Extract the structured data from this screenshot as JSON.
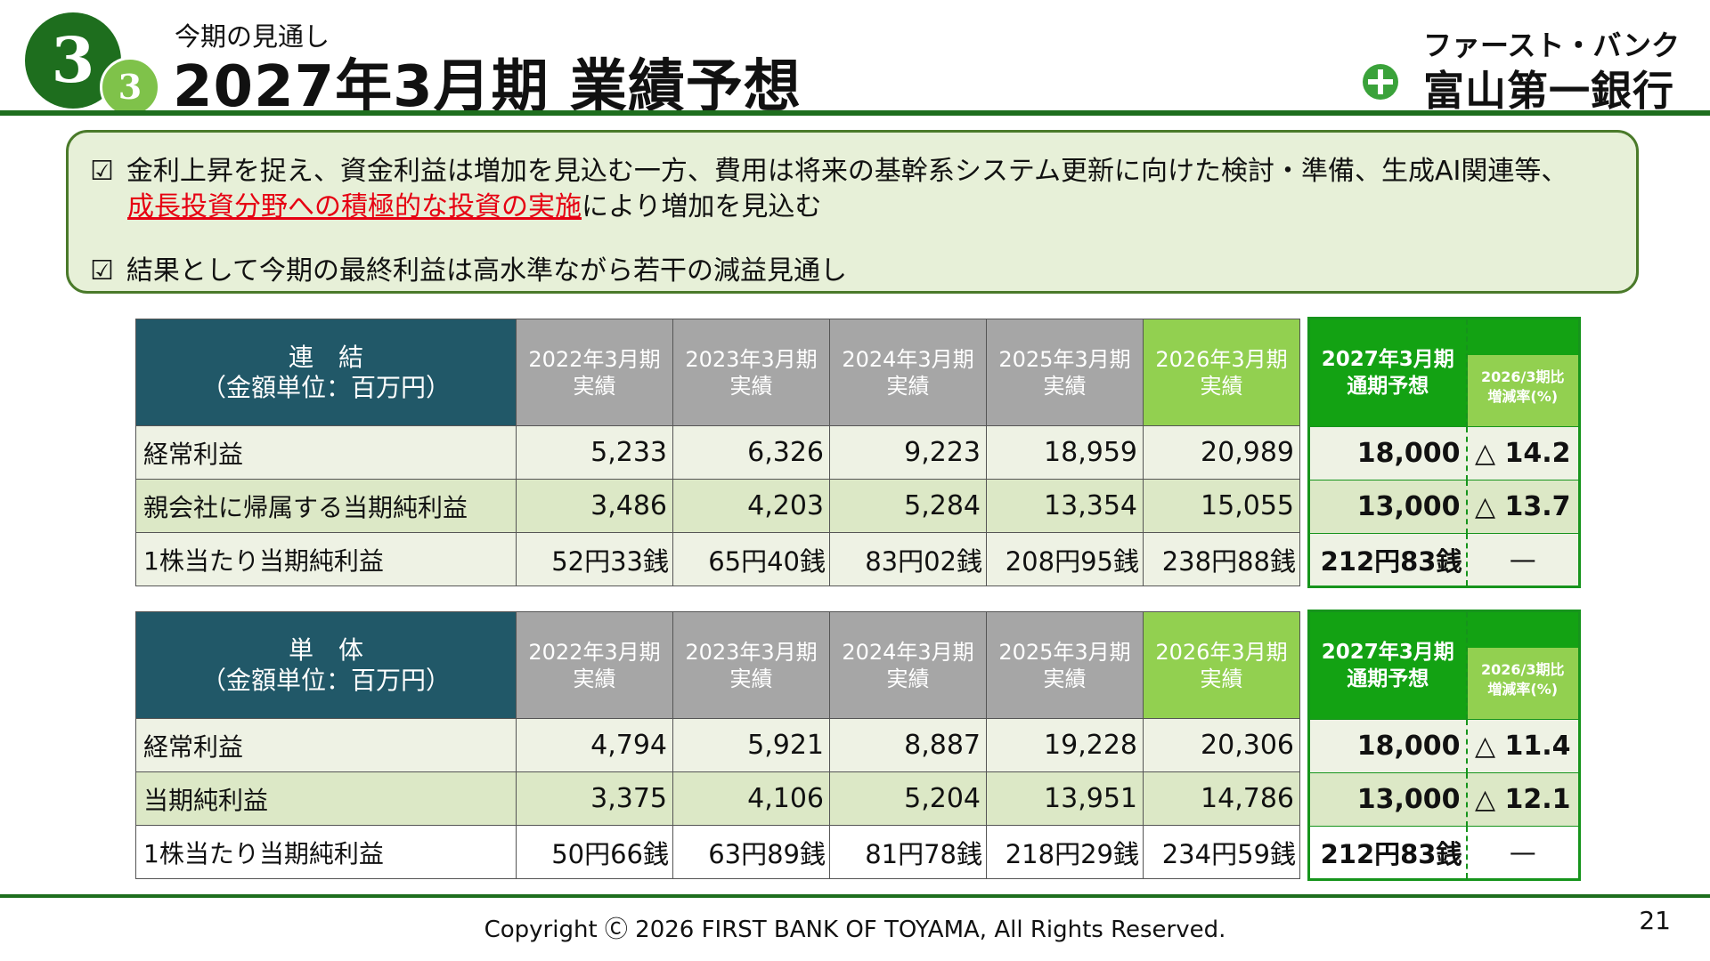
{
  "header": {
    "section_big": "3",
    "section_small": "3",
    "subtitle": "今期の見通し",
    "title": "2027年3月期 業績予想",
    "logo_kana": "ファースト・バンク",
    "logo_name": "富山第一銀行",
    "brand_color": "#1e6e1e"
  },
  "notes": {
    "checkbox": "☑",
    "line1": "金利上昇を捉え、資金利益は増加を見込む一方、費用は将来の基幹系システム更新に向けた検討・準備、生成AI関連等、",
    "line2_highlight": "成長投資分野への積極的な投資の実施",
    "line2_rest": "により増加を見込む",
    "line3": "結果として今期の最終利益は高水準ながら若干の減益見通し"
  },
  "tables": [
    {
      "label_line1": "連　結",
      "label_line2": "（金額単位：百万円）",
      "columns": [
        {
          "year": "2022年3月期",
          "kind": "実績"
        },
        {
          "year": "2023年3月期",
          "kind": "実績"
        },
        {
          "year": "2024年3月期",
          "kind": "実績"
        },
        {
          "year": "2025年3月期",
          "kind": "実績"
        },
        {
          "year": "2026年3月期",
          "kind": "実績"
        }
      ],
      "forecast_year": "2027年3月期",
      "forecast_kind": "通期予想",
      "rate_line1": "2026/3期比",
      "rate_line2": "増減率(%)",
      "rows": [
        {
          "label": "経常利益",
          "values": [
            "5,233",
            "6,326",
            "9,223",
            "18,959",
            "20,989"
          ],
          "forecast": "18,000",
          "rate": "△ 14.2"
        },
        {
          "label": "親会社に帰属する当期純利益",
          "values": [
            "3,486",
            "4,203",
            "5,284",
            "13,354",
            "15,055"
          ],
          "forecast": "13,000",
          "rate": "△ 13.7"
        },
        {
          "label": "1株当たり当期純利益",
          "values": [
            "52円33銭",
            "65円40銭",
            "83円02銭",
            "208円95銭",
            "238円88銭"
          ],
          "forecast": "212円83銭",
          "rate": "—"
        }
      ]
    },
    {
      "label_line1": "単　体",
      "label_line2": "（金額単位：百万円）",
      "columns": [
        {
          "year": "2022年3月期",
          "kind": "実績"
        },
        {
          "year": "2023年3月期",
          "kind": "実績"
        },
        {
          "year": "2024年3月期",
          "kind": "実績"
        },
        {
          "year": "2025年3月期",
          "kind": "実績"
        },
        {
          "year": "2026年3月期",
          "kind": "実績"
        }
      ],
      "forecast_year": "2027年3月期",
      "forecast_kind": "通期予想",
      "rate_line1": "2026/3期比",
      "rate_line2": "増減率(%)",
      "rows": [
        {
          "label": "経常利益",
          "values": [
            "4,794",
            "5,921",
            "8,887",
            "19,228",
            "20,306"
          ],
          "forecast": "18,000",
          "rate": "△ 11.4"
        },
        {
          "label": "当期純利益",
          "values": [
            "3,375",
            "4,106",
            "5,204",
            "13,951",
            "14,786"
          ],
          "forecast": "13,000",
          "rate": "△ 12.1"
        },
        {
          "label": "1株当たり当期純利益",
          "values": [
            "50円66銭",
            "63円89銭",
            "81円78銭",
            "218円29銭",
            "234円59銭"
          ],
          "forecast": "212円83銭",
          "rate": "—"
        }
      ]
    }
  ],
  "footer": {
    "copyright": "Copyright Ⓒ 2026 FIRST BANK OF TOYAMA, All Rights Reserved.",
    "page_number": "21"
  }
}
